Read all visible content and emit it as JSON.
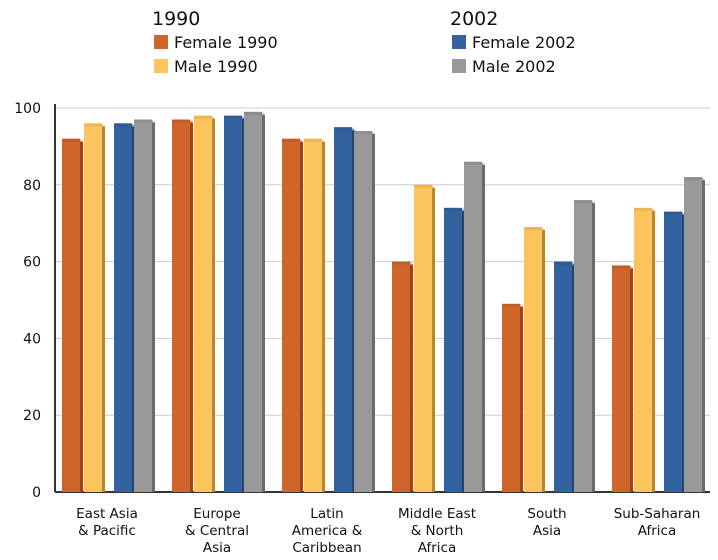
{
  "chart_data": {
    "type": "bar",
    "title": "",
    "xlabel": "",
    "ylabel": "",
    "ylim": [
      0,
      100
    ],
    "yticks": [
      0,
      20,
      40,
      60,
      80,
      100
    ],
    "grid": true,
    "legend_position": "top",
    "legend_groups": [
      {
        "heading": "1990",
        "entries": [
          "Female 1990",
          "Male 1990"
        ]
      },
      {
        "heading": "2002",
        "entries": [
          "Female 2002",
          "Male 2002"
        ]
      }
    ],
    "categories": [
      "East Asia & Pacific",
      "Europe & Central Asia",
      "Latin America & Caribbean",
      "Middle East & North Africa",
      "South Asia",
      "Sub-Saharan Africa"
    ],
    "category_label_lines": [
      [
        "East Asia",
        "& Pacific"
      ],
      [
        "Europe",
        "& Central",
        "Asia"
      ],
      [
        "Latin",
        "America &",
        "Caribbean"
      ],
      [
        "Middle East",
        "& North",
        "Africa"
      ],
      [
        "South",
        "Asia"
      ],
      [
        "Sub-Saharan",
        "Africa"
      ]
    ],
    "series": [
      {
        "name": "Female 1990",
        "color": "#d0652c",
        "values": [
          92,
          97,
          92,
          60,
          49,
          59
        ]
      },
      {
        "name": "Male 1990",
        "color": "#fcc45c",
        "values": [
          96,
          98,
          92,
          80,
          69,
          74
        ]
      },
      {
        "name": "Female 2002",
        "color": "#33639e",
        "values": [
          96,
          98,
          95,
          74,
          60,
          73
        ]
      },
      {
        "name": "Male 2002",
        "color": "#999999",
        "values": [
          97,
          99,
          94,
          86,
          76,
          82
        ]
      }
    ]
  }
}
